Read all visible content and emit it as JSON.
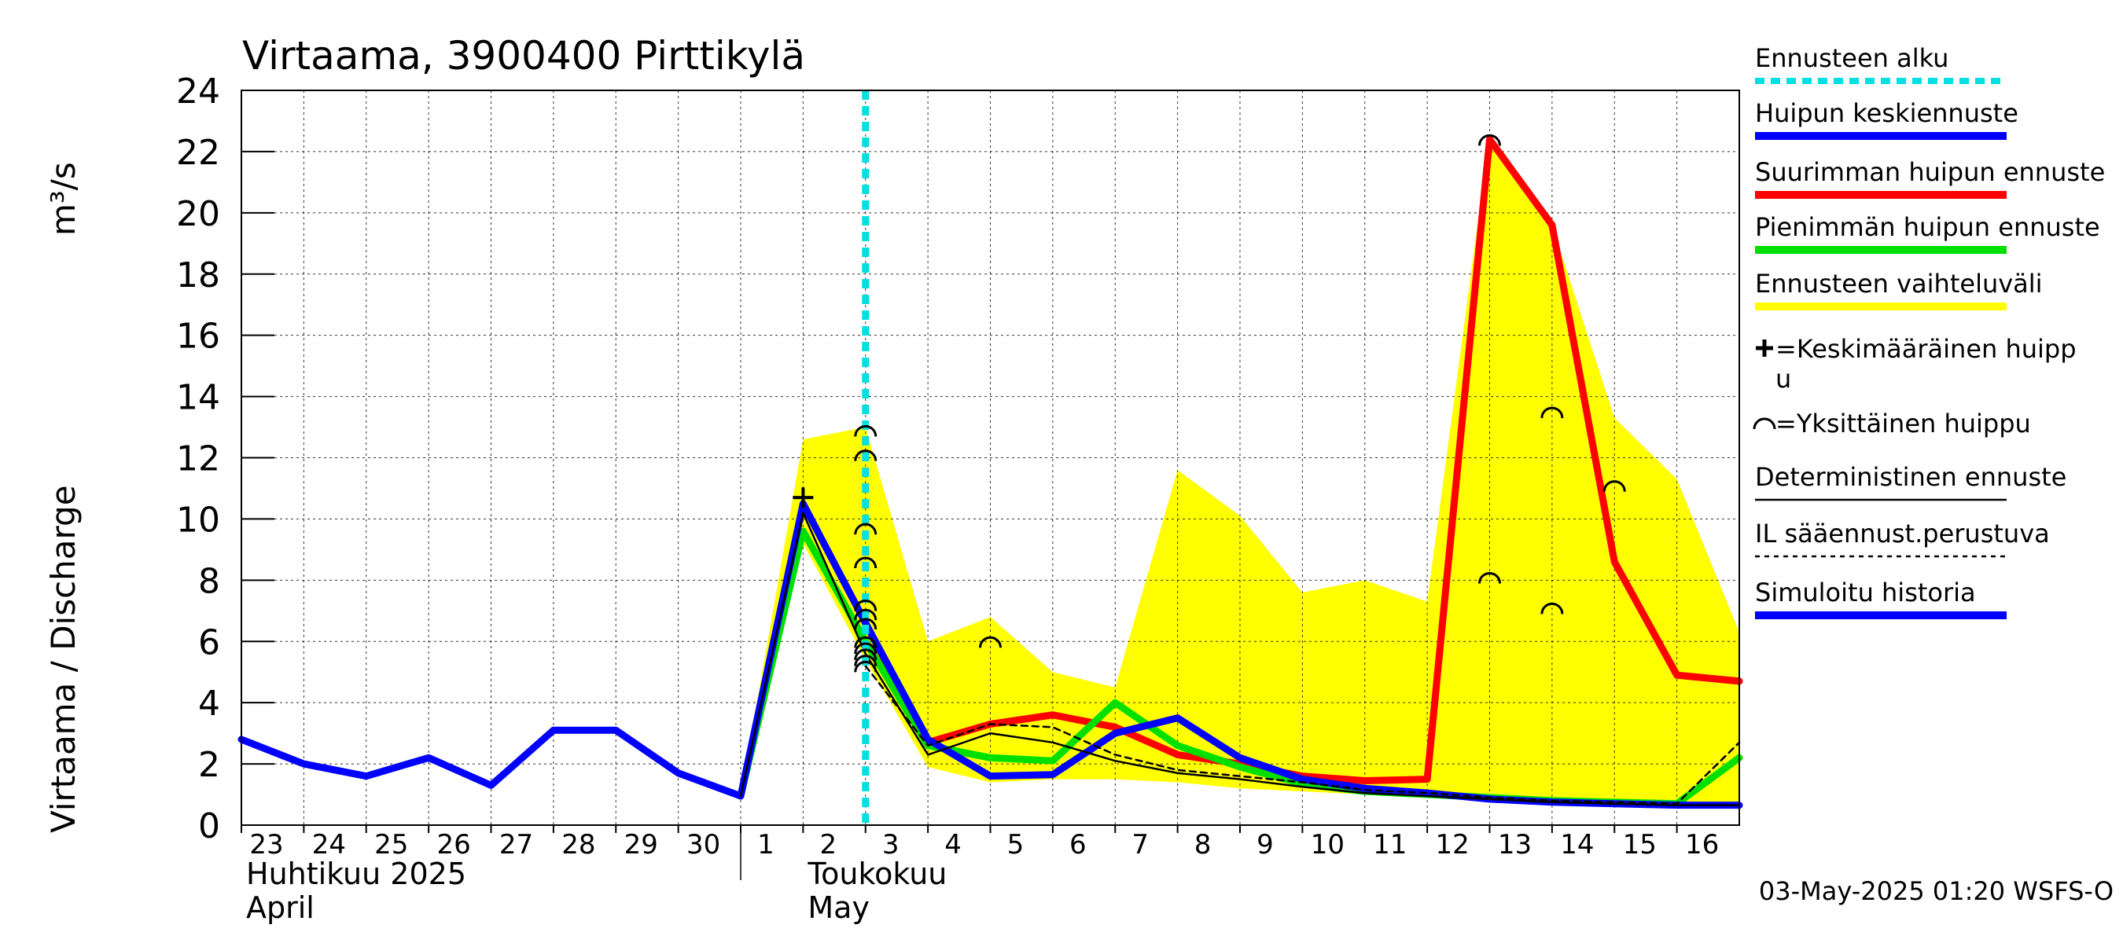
{
  "chart_data": {
    "type": "line",
    "title": "Virtaama, 3900400 Pirttikylä",
    "ylabel": "Virtaama / Discharge    m³/s",
    "ylabel_main": "Virtaama / Discharge",
    "ylabel_unit": "m³/s",
    "ylim": [
      0,
      24
    ],
    "y_ticks": [
      0,
      2,
      4,
      6,
      8,
      10,
      12,
      14,
      16,
      18,
      20,
      22,
      24
    ],
    "y_tick_labels": [
      "0",
      "2",
      "4",
      "6",
      "8",
      "10",
      "12",
      "14",
      "16",
      "18",
      "20",
      "22",
      "24"
    ],
    "xlim": [
      23,
      47
    ],
    "x_ticks": [
      23,
      24,
      25,
      26,
      27,
      28,
      29,
      30,
      31,
      32,
      33,
      34,
      35,
      36,
      37,
      38,
      39,
      40,
      41,
      42,
      43,
      44,
      45,
      46
    ],
    "x_tick_labels": [
      "23",
      "24",
      "25",
      "26",
      "27",
      "28",
      "29",
      "30",
      "1",
      "2",
      "3",
      "4",
      "5",
      "6",
      "7",
      "8",
      "9",
      "10",
      "11",
      "12",
      "13",
      "14",
      "15",
      "16"
    ],
    "month_labels": [
      {
        "x": 23,
        "line1": "Huhtikuu  2025",
        "line2": "April"
      },
      {
        "x": 32,
        "line1": "Toukokuu",
        "line2": "May"
      }
    ],
    "month_divider_x": 31,
    "grid": true,
    "forecast_start_x": 33,
    "band": {
      "name": "Ennusteen vaihteluväli",
      "color": "#ffff00",
      "upper": [
        [
          31,
          1.0
        ],
        [
          32,
          12.6
        ],
        [
          33,
          13.0
        ],
        [
          34,
          6.0
        ],
        [
          35,
          6.8
        ],
        [
          36,
          5.0
        ],
        [
          37,
          4.5
        ],
        [
          38,
          11.6
        ],
        [
          39,
          10.1
        ],
        [
          40,
          7.6
        ],
        [
          41,
          8.0
        ],
        [
          42,
          7.3
        ],
        [
          43,
          22.6
        ],
        [
          44,
          19.6
        ],
        [
          45,
          13.3
        ],
        [
          46,
          11.3
        ],
        [
          47,
          6.3
        ]
      ],
      "lower": [
        [
          47,
          0.55
        ],
        [
          46,
          0.6
        ],
        [
          45,
          0.65
        ],
        [
          44,
          0.75
        ],
        [
          43,
          0.85
        ],
        [
          42,
          0.9
        ],
        [
          41,
          1.0
        ],
        [
          40,
          1.1
        ],
        [
          39,
          1.2
        ],
        [
          38,
          1.4
        ],
        [
          37,
          1.5
        ],
        [
          36,
          1.5
        ],
        [
          35,
          1.4
        ],
        [
          34,
          1.9
        ],
        [
          33,
          5.4
        ],
        [
          32,
          9.2
        ],
        [
          31,
          1.0
        ]
      ]
    },
    "series": [
      {
        "name": "Simuloitu historia",
        "color": "#0000ff",
        "width": 9,
        "points": [
          [
            23,
            2.8
          ],
          [
            24,
            2.0
          ],
          [
            25,
            1.6
          ],
          [
            26,
            2.2
          ],
          [
            27,
            1.3
          ],
          [
            28,
            3.1
          ],
          [
            29,
            3.1
          ],
          [
            30,
            1.7
          ],
          [
            31,
            0.95
          ],
          [
            32,
            10.5
          ],
          [
            33,
            6.6
          ]
        ]
      },
      {
        "name": "Suurimman huipun ennuste",
        "color": "#ff0000",
        "width": 9,
        "points": [
          [
            33,
            6.6
          ],
          [
            34,
            2.7
          ],
          [
            35,
            3.3
          ],
          [
            36,
            3.6
          ],
          [
            37,
            3.2
          ],
          [
            38,
            2.3
          ],
          [
            39,
            2.0
          ],
          [
            40,
            1.6
          ],
          [
            41,
            1.45
          ],
          [
            42,
            1.5
          ],
          [
            43,
            22.4
          ],
          [
            44,
            19.6
          ],
          [
            45,
            8.6
          ],
          [
            46,
            4.9
          ],
          [
            47,
            4.7
          ]
        ]
      },
      {
        "name": "Pienimmän huipun ennuste",
        "color": "#00e000",
        "width": 9,
        "points": [
          [
            31,
            0.95
          ],
          [
            32,
            9.6
          ],
          [
            33,
            6.0
          ],
          [
            34,
            2.6
          ],
          [
            35,
            2.2
          ],
          [
            36,
            2.1
          ],
          [
            37,
            4.0
          ],
          [
            38,
            2.6
          ],
          [
            39,
            1.9
          ],
          [
            40,
            1.35
          ],
          [
            41,
            1.1
          ],
          [
            42,
            1.0
          ],
          [
            43,
            0.9
          ],
          [
            44,
            0.8
          ],
          [
            45,
            0.75
          ],
          [
            46,
            0.7
          ],
          [
            47,
            2.2
          ]
        ]
      },
      {
        "name": "Huipun keskiennuste",
        "color": "#0000ff",
        "width": 9,
        "points": [
          [
            33,
            6.6
          ],
          [
            34,
            2.8
          ],
          [
            35,
            1.6
          ],
          [
            36,
            1.65
          ],
          [
            37,
            3.0
          ],
          [
            38,
            3.5
          ],
          [
            39,
            2.2
          ],
          [
            40,
            1.5
          ],
          [
            41,
            1.2
          ],
          [
            42,
            1.05
          ],
          [
            43,
            0.85
          ],
          [
            44,
            0.75
          ],
          [
            45,
            0.7
          ],
          [
            46,
            0.65
          ],
          [
            47,
            0.65
          ]
        ]
      },
      {
        "name": "Deterministinen ennuste",
        "color": "#000000",
        "width": 2.5,
        "points": [
          [
            31,
            0.95
          ],
          [
            32,
            10.2
          ],
          [
            33,
            5.6
          ],
          [
            34,
            2.3
          ],
          [
            35,
            3.0
          ],
          [
            36,
            2.7
          ],
          [
            37,
            2.1
          ],
          [
            38,
            1.7
          ],
          [
            39,
            1.5
          ],
          [
            40,
            1.25
          ],
          [
            41,
            1.05
          ],
          [
            42,
            0.95
          ],
          [
            43,
            0.85
          ],
          [
            44,
            0.75
          ],
          [
            45,
            0.7
          ],
          [
            46,
            0.65
          ],
          [
            47,
            0.65
          ]
        ]
      },
      {
        "name": "IL sääennust.perustuva",
        "color": "#000000",
        "width": 2.5,
        "dash": "8,6",
        "points": [
          [
            33,
            5.2
          ],
          [
            34,
            2.6
          ],
          [
            35,
            3.3
          ],
          [
            36,
            3.2
          ],
          [
            37,
            2.3
          ],
          [
            38,
            1.8
          ],
          [
            39,
            1.6
          ],
          [
            40,
            1.4
          ],
          [
            41,
            1.15
          ],
          [
            42,
            1.05
          ],
          [
            43,
            0.9
          ],
          [
            44,
            0.8
          ],
          [
            45,
            0.75
          ],
          [
            46,
            0.7
          ],
          [
            47,
            2.7
          ]
        ]
      }
    ],
    "mean_peak": {
      "x": 32,
      "y": 10.7
    },
    "individual_peaks": [
      [
        33,
        12.9
      ],
      [
        33,
        12.1
      ],
      [
        33,
        9.7
      ],
      [
        33,
        8.6
      ],
      [
        33,
        7.2
      ],
      [
        33,
        6.9
      ],
      [
        33,
        6.6
      ],
      [
        33,
        6.0
      ],
      [
        33,
        5.8
      ],
      [
        33,
        5.6
      ],
      [
        33,
        5.4
      ],
      [
        33,
        5.2
      ],
      [
        35,
        6.0
      ],
      [
        43,
        22.4
      ],
      [
        43,
        8.1
      ],
      [
        44,
        13.5
      ],
      [
        44,
        7.1
      ],
      [
        45,
        11.1
      ]
    ],
    "legend": {
      "position": "right",
      "items": [
        {
          "key": "forecast_start",
          "label": "Ennusteen alku",
          "color": "#00e0e0",
          "style": "dotted"
        },
        {
          "key": "mean_forecast",
          "label": "Huipun keskiennuste",
          "color": "#0000ff",
          "style": "thick"
        },
        {
          "key": "max_forecast",
          "label": "Suurimman huipun ennuste",
          "color": "#ff0000",
          "style": "thick"
        },
        {
          "key": "min_forecast",
          "label": "Pienimmän huipun ennuste",
          "color": "#00e000",
          "style": "thick"
        },
        {
          "key": "range",
          "label": "Ennusteen vaihteluväli",
          "color": "#ffff00",
          "style": "thick"
        },
        {
          "key": "mean_peak",
          "label": "=Keskimääräinen huipp",
          "label2": "u",
          "color": "#000000",
          "style": "plus"
        },
        {
          "key": "single_peak",
          "label": "=Yksittäinen huippu",
          "color": "#000000",
          "style": "arc"
        },
        {
          "key": "deterministic",
          "label": "Deterministinen ennuste",
          "color": "#000000",
          "style": "thin"
        },
        {
          "key": "il",
          "label": "IL sääennust.perustuva",
          "color": "#000000",
          "style": "dashed"
        },
        {
          "key": "history",
          "label": "Simuloitu historia",
          "color": "#0000ff",
          "style": "thick"
        }
      ]
    },
    "footer": "03-May-2025 01:20 WSFS-O"
  }
}
